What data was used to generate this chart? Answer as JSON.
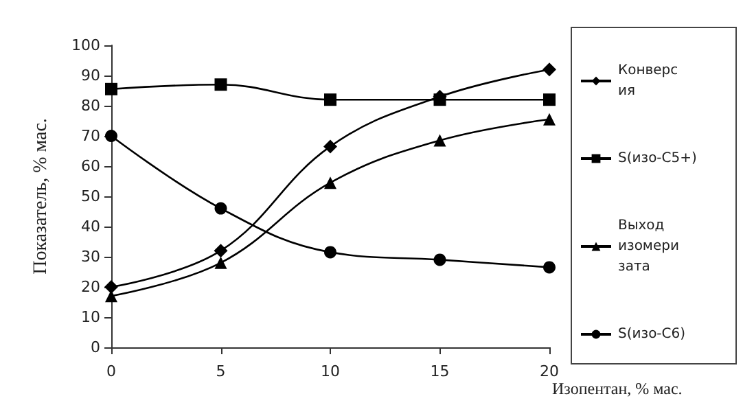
{
  "chart_data": {
    "type": "line",
    "xlabel": "Изопентан, % мас.",
    "ylabel": "Показатель, % мас.",
    "x": [
      0,
      5,
      10,
      15,
      20
    ],
    "xlim": [
      0,
      20
    ],
    "xticks": [
      0,
      5,
      10,
      15,
      20
    ],
    "ylim": [
      0,
      100
    ],
    "yticks": [
      0,
      10,
      20,
      30,
      40,
      50,
      60,
      70,
      80,
      90,
      100
    ],
    "grid": false,
    "legend": "right",
    "line_style": "solid",
    "series": [
      {
        "name": "Конверсия",
        "color": "#000000",
        "marker": "diamond",
        "values": [
          20,
          32,
          66.5,
          83,
          92
        ]
      },
      {
        "name": "S(изо-C5+)",
        "color": "#000000",
        "marker": "square",
        "values": [
          85.5,
          87,
          82,
          82,
          82
        ]
      },
      {
        "name": "Выход изомеризата",
        "color": "#000000",
        "marker": "triangle",
        "values": [
          17,
          28,
          54.5,
          68.5,
          75.5
        ]
      },
      {
        "name": "S(изо-C6)",
        "color": "#000000",
        "marker": "circle",
        "values": [
          70,
          46,
          31.5,
          29,
          26.5
        ]
      }
    ]
  }
}
